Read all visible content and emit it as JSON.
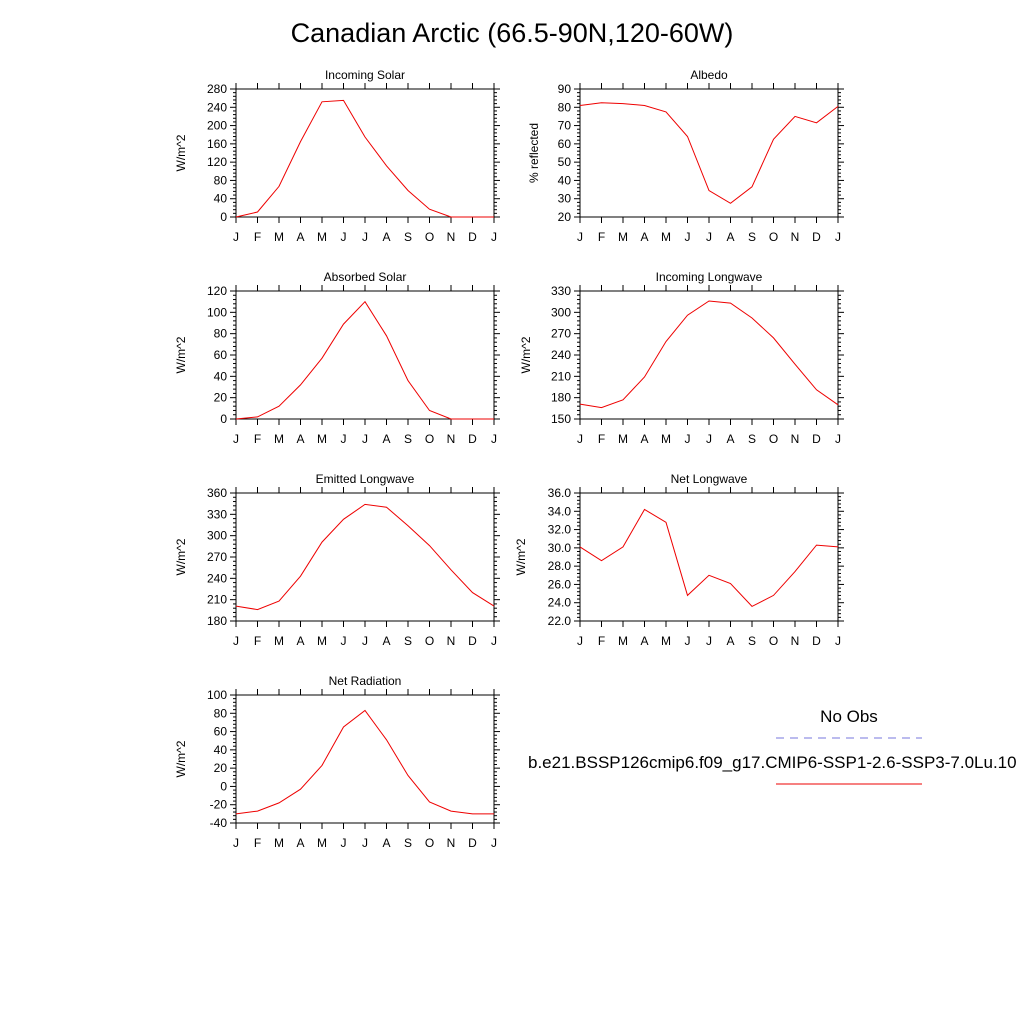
{
  "figure": {
    "title": "Canadian Arctic (66.5-90N,120-60W)"
  },
  "legend": {
    "obs_label": "No Obs",
    "model_label": "b.e21.BSSP126cmip6.f09_g17.CMIP6-SSP1-2.6-SSP3-7.0Lu.10",
    "obs_color": "#7777dd",
    "model_color": "#ee0000"
  },
  "chart_data": [
    {
      "type": "line",
      "title": "Incoming Solar",
      "ylabel": "W/m^2",
      "x": [
        "J",
        "F",
        "M",
        "A",
        "M",
        "J",
        "J",
        "A",
        "S",
        "O",
        "N",
        "D",
        "J"
      ],
      "ylim": [
        0,
        280
      ],
      "yticks": [
        0,
        40,
        80,
        120,
        160,
        200,
        240,
        280
      ],
      "yticklabels": [
        "0",
        "40",
        "80",
        "120",
        "160",
        "200",
        "240",
        "280"
      ],
      "series": [
        {
          "color": "#ee0000",
          "values": [
            0,
            11,
            67,
            165,
            252,
            255,
            175,
            112,
            58,
            17,
            0,
            0,
            0
          ]
        }
      ]
    },
    {
      "type": "line",
      "title": "Albedo",
      "ylabel": "% reflected",
      "x": [
        "J",
        "F",
        "M",
        "A",
        "M",
        "J",
        "J",
        "A",
        "S",
        "O",
        "N",
        "D",
        "J"
      ],
      "ylim": [
        20,
        90
      ],
      "yticks": [
        20,
        30,
        40,
        50,
        60,
        70,
        80,
        90
      ],
      "yticklabels": [
        "20",
        "30",
        "40",
        "50",
        "60",
        "70",
        "80",
        "90"
      ],
      "series": [
        {
          "color": "#ee0000",
          "values": [
            81,
            82.5,
            82,
            81,
            77.5,
            64,
            34.5,
            27.5,
            36.5,
            62.5,
            75,
            71.5,
            80.5
          ]
        }
      ]
    },
    {
      "type": "line",
      "title": "Absorbed Solar",
      "ylabel": "W/m^2",
      "x": [
        "J",
        "F",
        "M",
        "A",
        "M",
        "J",
        "J",
        "A",
        "S",
        "O",
        "N",
        "D",
        "J"
      ],
      "ylim": [
        0,
        120
      ],
      "yticks": [
        0,
        20,
        40,
        60,
        80,
        100,
        120
      ],
      "yticklabels": [
        "0",
        "20",
        "40",
        "60",
        "80",
        "100",
        "120"
      ],
      "series": [
        {
          "color": "#ee0000",
          "values": [
            0,
            2,
            12,
            32,
            57,
            89,
            110,
            78,
            36,
            8,
            0,
            0,
            0
          ]
        }
      ]
    },
    {
      "type": "line",
      "title": "Incoming Longwave",
      "ylabel": "W/m^2",
      "x": [
        "J",
        "F",
        "M",
        "A",
        "M",
        "J",
        "J",
        "A",
        "S",
        "O",
        "N",
        "D",
        "J"
      ],
      "ylim": [
        150,
        330
      ],
      "yticks": [
        150,
        180,
        210,
        240,
        270,
        300,
        330
      ],
      "yticklabels": [
        "150",
        "180",
        "210",
        "240",
        "270",
        "300",
        "330"
      ],
      "series": [
        {
          "color": "#ee0000",
          "values": [
            171,
            166,
            177,
            209,
            259,
            296,
            316,
            313,
            292,
            264,
            227,
            191,
            170
          ]
        }
      ]
    },
    {
      "type": "line",
      "title": "Emitted Longwave",
      "ylabel": "W/m^2",
      "x": [
        "J",
        "F",
        "M",
        "A",
        "M",
        "J",
        "J",
        "A",
        "S",
        "O",
        "N",
        "D",
        "J"
      ],
      "ylim": [
        180,
        360
      ],
      "yticks": [
        180,
        210,
        240,
        270,
        300,
        330,
        360
      ],
      "yticklabels": [
        "180",
        "210",
        "240",
        "270",
        "300",
        "330",
        "360"
      ],
      "series": [
        {
          "color": "#ee0000",
          "values": [
            201,
            196,
            208,
            243,
            291,
            323,
            344,
            340,
            314,
            286,
            252,
            220,
            201
          ]
        }
      ]
    },
    {
      "type": "line",
      "title": "Net Longwave",
      "ylabel": "W/m^2",
      "x": [
        "J",
        "F",
        "M",
        "A",
        "M",
        "J",
        "J",
        "A",
        "S",
        "O",
        "N",
        "D",
        "J"
      ],
      "ylim": [
        22,
        36
      ],
      "yticks": [
        22,
        24,
        26,
        28,
        30,
        32,
        34,
        36
      ],
      "yticklabels": [
        "22.0",
        "24.0",
        "26.0",
        "28.0",
        "30.0",
        "32.0",
        "34.0",
        "36.0"
      ],
      "series": [
        {
          "color": "#ee0000",
          "values": [
            30.1,
            28.6,
            30.1,
            34.2,
            32.8,
            24.8,
            27.0,
            26.1,
            23.6,
            24.8,
            27.4,
            30.3,
            30.1
          ]
        }
      ]
    },
    {
      "type": "line",
      "title": "Net Radiation",
      "ylabel": "W/m^2",
      "x": [
        "J",
        "F",
        "M",
        "A",
        "M",
        "J",
        "J",
        "A",
        "S",
        "O",
        "N",
        "D",
        "J"
      ],
      "ylim": [
        -40,
        100
      ],
      "yticks": [
        -40,
        -20,
        0,
        20,
        40,
        60,
        80,
        100
      ],
      "yticklabels": [
        "-40",
        "-20",
        "0",
        "20",
        "40",
        "60",
        "80",
        "100"
      ],
      "series": [
        {
          "color": "#ee0000",
          "values": [
            -30,
            -27,
            -18,
            -3,
            23,
            65,
            83,
            51,
            12,
            -17,
            -27,
            -30,
            -30
          ]
        }
      ]
    }
  ]
}
